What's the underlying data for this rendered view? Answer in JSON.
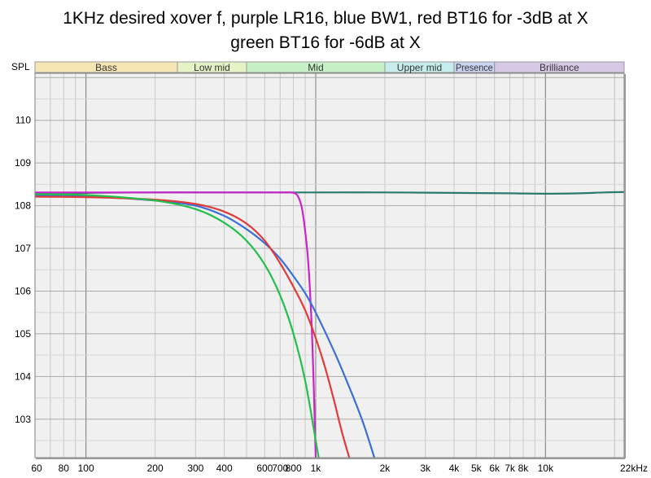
{
  "chart_data": {
    "type": "line",
    "title": "1KHz desired xover f, purple LR16, blue BW1, red BT16 for -3dB at X",
    "subtitle": "green BT16 for -6dB at X",
    "ylabel": "SPL",
    "xlabel": "",
    "x_scale": "log",
    "xlim": [
      60,
      22000
    ],
    "ylim": [
      102.1,
      111.1
    ],
    "grid": true,
    "legend": "none",
    "x_ticks": [
      {
        "value": 60,
        "label": "60"
      },
      {
        "value": 80,
        "label": "80"
      },
      {
        "value": 100,
        "label": "100"
      },
      {
        "value": 200,
        "label": "200"
      },
      {
        "value": 300,
        "label": "300"
      },
      {
        "value": 400,
        "label": "400"
      },
      {
        "value": 600,
        "label": "600"
      },
      {
        "value": 700,
        "label": "700"
      },
      {
        "value": 800,
        "label": "800"
      },
      {
        "value": 1000,
        "label": "1k"
      },
      {
        "value": 2000,
        "label": "2k"
      },
      {
        "value": 3000,
        "label": "3k"
      },
      {
        "value": 4000,
        "label": "4k"
      },
      {
        "value": 5000,
        "label": "5k"
      },
      {
        "value": 6000,
        "label": "6k"
      },
      {
        "value": 7000,
        "label": "7k"
      },
      {
        "value": 8000,
        "label": "8k"
      },
      {
        "value": 10000,
        "label": "10k"
      },
      {
        "value": 22000,
        "label": "22kHz"
      }
    ],
    "y_ticks": [
      103,
      104,
      105,
      106,
      107,
      108,
      109,
      110
    ],
    "bands": [
      {
        "name": "Bass",
        "from": 60,
        "to": 250,
        "color": "#f6e6b4"
      },
      {
        "name": "Low mid",
        "from": 250,
        "to": 500,
        "color": "#e4f2c6"
      },
      {
        "name": "Mid",
        "from": 500,
        "to": 2000,
        "color": "#c7f0c7"
      },
      {
        "name": "Upper mid",
        "from": 2000,
        "to": 4000,
        "color": "#c6ecec"
      },
      {
        "name": "Presence",
        "from": 4000,
        "to": 6000,
        "color": "#c9d3f2"
      },
      {
        "name": "Brilliance",
        "from": 6000,
        "to": 22000,
        "color": "#d7c9e6"
      }
    ],
    "series": [
      {
        "color": "#2a7a72",
        "x": [
          60,
          100,
          200,
          400,
          700,
          1000,
          2000,
          4000,
          7000,
          10000,
          14000,
          18000,
          22000
        ],
        "y": [
          108.28,
          108.3,
          108.31,
          108.31,
          108.31,
          108.31,
          108.31,
          108.3,
          108.29,
          108.28,
          108.29,
          108.31,
          108.32
        ]
      },
      {
        "color": "#cc22cc",
        "x": [
          60,
          100,
          200,
          400,
          700,
          800,
          840,
          870,
          900,
          930,
          960,
          980,
          1000
        ],
        "y": [
          108.31,
          108.31,
          108.31,
          108.31,
          108.31,
          108.3,
          108.2,
          107.95,
          107.4,
          106.6,
          105.2,
          103.8,
          102.1
        ]
      },
      {
        "color": "#3a6fd8",
        "x": [
          60,
          100,
          200,
          300,
          400,
          500,
          600,
          700,
          800,
          900,
          1000,
          1200,
          1400,
          1600,
          1800
        ],
        "y": [
          108.24,
          108.22,
          108.12,
          108.0,
          107.76,
          107.45,
          107.12,
          106.76,
          106.35,
          105.95,
          105.5,
          104.6,
          103.75,
          102.95,
          102.1
        ]
      },
      {
        "color": "#e03a3a",
        "x": [
          60,
          100,
          200,
          300,
          400,
          500,
          600,
          700,
          800,
          900,
          1000,
          1100,
          1200,
          1300,
          1400
        ],
        "y": [
          108.21,
          108.2,
          108.14,
          108.04,
          107.86,
          107.58,
          107.18,
          106.65,
          106.1,
          105.55,
          104.9,
          104.2,
          103.45,
          102.7,
          102.1
        ]
      },
      {
        "color": "#22c04a",
        "x": [
          60,
          100,
          200,
          300,
          400,
          500,
          600,
          700,
          800,
          900,
          1000,
          1030
        ],
        "y": [
          108.27,
          108.25,
          108.12,
          107.92,
          107.6,
          107.18,
          106.62,
          105.9,
          105.0,
          103.9,
          102.5,
          102.1
        ]
      }
    ]
  }
}
